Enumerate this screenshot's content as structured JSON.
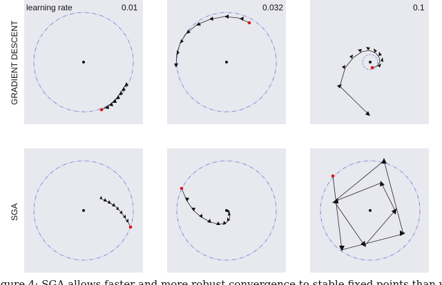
{
  "header": {
    "learning_rate_label": "learning rate",
    "rates": [
      "0.01",
      "0.032",
      "0.1"
    ]
  },
  "rows": [
    {
      "label": "GRADIENT DESCENT"
    },
    {
      "label": "SGA"
    }
  ],
  "caption": "igure 4: SGA allows faster and more robust convergence to stable fixed points than van",
  "colors": {
    "panel_background": "#e8e8ef",
    "reference_circle": "#7f7fd6",
    "trajectory_start": "#e0141a",
    "trajectory_arrow": "#111111"
  }
}
